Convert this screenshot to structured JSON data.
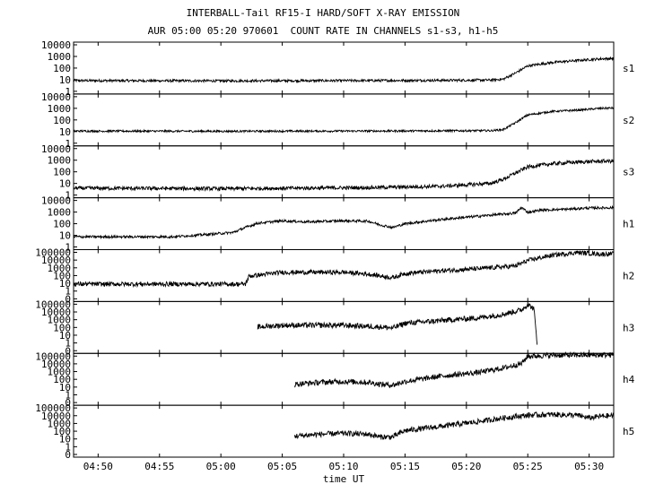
{
  "chart_data": {
    "type": "line",
    "title": "INTERBALL-Tail RF15-I HARD/SOFT X-RAY EMISSION",
    "subtitle": "AUR 05:00 05:20 970601  COUNT RATE IN CHANNELS s1-s3, h1-h5",
    "xlabel": "time UT",
    "x_ticks": [
      "04:50",
      "04:55",
      "05:00",
      "05:05",
      "05:10",
      "05:15",
      "05:20",
      "05:25",
      "05:30"
    ],
    "x_tick_minutes": [
      290,
      295,
      300,
      305,
      310,
      315,
      320,
      325,
      330
    ],
    "xlim_minutes": [
      288,
      332
    ],
    "yscale": "log",
    "grid": false,
    "panels": [
      {
        "name": "s1",
        "y_ticks": [
          "10000",
          "1000",
          "100",
          "10",
          "1"
        ],
        "ylim": [
          1,
          10000
        ],
        "points": [
          [
            288,
            10
          ],
          [
            300,
            9.5
          ],
          [
            312,
            10
          ],
          [
            318,
            10.5
          ],
          [
            322,
            11
          ],
          [
            323,
            13
          ],
          [
            324,
            40
          ],
          [
            325,
            150
          ],
          [
            327,
            280
          ],
          [
            329,
            400
          ],
          [
            331,
            550
          ],
          [
            332,
            580
          ]
        ],
        "noise": 0.1
      },
      {
        "name": "s2",
        "y_ticks": [
          "10000",
          "1000",
          "100",
          "10",
          "1"
        ],
        "ylim": [
          1,
          10000
        ],
        "points": [
          [
            288,
            13
          ],
          [
            300,
            12.5
          ],
          [
            312,
            13
          ],
          [
            318,
            13.5
          ],
          [
            322,
            14
          ],
          [
            323,
            17
          ],
          [
            324,
            60
          ],
          [
            325,
            250
          ],
          [
            327,
            480
          ],
          [
            329,
            600
          ],
          [
            331,
            850
          ],
          [
            332,
            900
          ]
        ],
        "noise": 0.08
      },
      {
        "name": "s3",
        "y_ticks": [
          "10000",
          "1000",
          "100",
          "10",
          "1"
        ],
        "ylim": [
          1,
          10000
        ],
        "points": [
          [
            288,
            5
          ],
          [
            300,
            4.5
          ],
          [
            312,
            5.5
          ],
          [
            318,
            7
          ],
          [
            322,
            12
          ],
          [
            323,
            25
          ],
          [
            324,
            80
          ],
          [
            325,
            250
          ],
          [
            327,
            450
          ],
          [
            329,
            600
          ],
          [
            331,
            700
          ],
          [
            332,
            720
          ]
        ],
        "noise": 0.15
      },
      {
        "name": "h1",
        "y_ticks": [
          "10000",
          "1000",
          "100",
          "10",
          "1"
        ],
        "ylim": [
          1,
          10000
        ],
        "points": [
          [
            288,
            9
          ],
          [
            296,
            9
          ],
          [
            298,
            12
          ],
          [
            301,
            20
          ],
          [
            302,
            50
          ],
          [
            303,
            110
          ],
          [
            305,
            170
          ],
          [
            307,
            140
          ],
          [
            310,
            170
          ],
          [
            312,
            160
          ],
          [
            313,
            80
          ],
          [
            314,
            50
          ],
          [
            315,
            100
          ],
          [
            318,
            220
          ],
          [
            321,
            400
          ],
          [
            324,
            700
          ],
          [
            324.5,
            2000
          ],
          [
            325,
            800
          ],
          [
            326,
            1200
          ],
          [
            328,
            1400
          ],
          [
            330,
            1800
          ],
          [
            332,
            1900
          ]
        ],
        "noise": 0.1
      },
      {
        "name": "h2",
        "y_ticks": [
          "100000",
          "10000",
          "1000",
          "100",
          "10",
          "1",
          "0"
        ],
        "ylim": [
          0.3,
          100000
        ],
        "points": [
          [
            288,
            20
          ],
          [
            302,
            20
          ],
          [
            302.3,
            150
          ],
          [
            305,
            400
          ],
          [
            310,
            400
          ],
          [
            312,
            250
          ],
          [
            314,
            100
          ],
          [
            315,
            300
          ],
          [
            318,
            600
          ],
          [
            321,
            1000
          ],
          [
            324,
            2000
          ],
          [
            325,
            8000
          ],
          [
            327,
            30000
          ],
          [
            329,
            60000
          ],
          [
            331,
            40000
          ],
          [
            332,
            45000
          ]
        ],
        "noise": 0.25
      },
      {
        "name": "h3",
        "y_ticks": [
          "100000",
          "10000",
          "1000",
          "100",
          "10",
          "1",
          "0"
        ],
        "ylim": [
          0.3,
          100000
        ],
        "points": [
          [
            303,
            200
          ],
          [
            305,
            300
          ],
          [
            310,
            300
          ],
          [
            313,
            200
          ],
          [
            314,
            150
          ],
          [
            315,
            500
          ],
          [
            318,
            1000
          ],
          [
            321,
            2000
          ],
          [
            323,
            5000
          ],
          [
            324.5,
            15000
          ],
          [
            325,
            60000
          ],
          [
            325.5,
            20000
          ],
          [
            325.8,
            1
          ]
        ],
        "noise": 0.3
      },
      {
        "name": "h4",
        "y_ticks": [
          "100000",
          "10000",
          "1000",
          "100",
          "10",
          "1",
          "0"
        ],
        "ylim": [
          0.3,
          100000
        ],
        "points": [
          [
            306,
            50
          ],
          [
            308,
            80
          ],
          [
            310,
            100
          ],
          [
            312,
            80
          ],
          [
            313,
            50
          ],
          [
            314,
            40
          ],
          [
            315,
            100
          ],
          [
            318,
            400
          ],
          [
            321,
            1000
          ],
          [
            323,
            3000
          ],
          [
            324.5,
            10000
          ],
          [
            325,
            60000
          ],
          [
            327,
            80000
          ],
          [
            329,
            80000
          ],
          [
            332,
            85000
          ]
        ],
        "noise": 0.3
      },
      {
        "name": "h5",
        "y_ticks": [
          "100000",
          "10000",
          "1000",
          "100",
          "10",
          "1",
          "0"
        ],
        "ylim": [
          0.3,
          100000
        ],
        "points": [
          [
            306,
            50
          ],
          [
            308,
            80
          ],
          [
            310,
            100
          ],
          [
            312,
            80
          ],
          [
            313,
            40
          ],
          [
            314,
            40
          ],
          [
            315,
            200
          ],
          [
            318,
            600
          ],
          [
            321,
            2000
          ],
          [
            323,
            5000
          ],
          [
            325,
            10000
          ],
          [
            327,
            12000
          ],
          [
            329,
            10000
          ],
          [
            330,
            5000
          ],
          [
            331,
            8000
          ],
          [
            332,
            9000
          ]
        ],
        "noise": 0.3
      }
    ]
  }
}
